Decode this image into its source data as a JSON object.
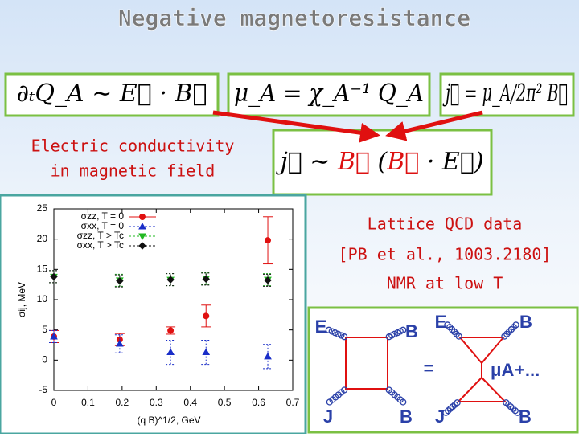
{
  "title": "Negative magnetoresistance",
  "formulas": [
    {
      "parts": [
        "∂ₜQ_A ∼ E⃗ · B⃗"
      ],
      "colors": [
        "#000000"
      ]
    },
    {
      "parts": [
        "μ_A = χ_A⁻¹ Q_A"
      ],
      "colors": [
        "#000000"
      ]
    },
    {
      "parts": [
        "j⃗ = μ_A/2π² B⃗"
      ],
      "colors": [
        "#000000"
      ]
    },
    {
      "parts": [
        "j⃗ ∼ ",
        "B⃗",
        " (",
        "B⃗",
        " · E⃗)"
      ],
      "colors": [
        "#000000",
        "#dd1111",
        "#000000",
        "#dd1111",
        "#000000"
      ]
    }
  ],
  "left_label": [
    "Electric conductivity",
    "in magnetic field"
  ],
  "right_text": [
    "Lattice QCD data",
    "[PB et al., 1003.2180]",
    "NMR at low T"
  ],
  "chart_data": {
    "type": "scatter",
    "x_label": "(q B)^1/2, GeV",
    "y_label": "σij, MeV",
    "xlim": [
      0,
      0.7
    ],
    "xticks": [
      0,
      0.1,
      0.2,
      0.3,
      0.4,
      0.5,
      0.6,
      0.7
    ],
    "ylim": [
      -5,
      25
    ],
    "yticks": [
      -5,
      0,
      5,
      10,
      15,
      20,
      25
    ],
    "series": [
      {
        "name": "σzz, T = 0",
        "color": "#e01010",
        "marker": "circle",
        "x": [
          0,
          0.193,
          0.342,
          0.446,
          0.627
        ],
        "values": [
          3.9,
          3.4,
          4.9,
          7.3,
          19.8
        ],
        "errors": [
          1,
          1,
          0.6,
          1.8,
          3.9
        ]
      },
      {
        "name": "σxx, T = 0",
        "color": "#1a2ec8",
        "marker": "triangle",
        "x": [
          0,
          0.193,
          0.342,
          0.446,
          0.627
        ],
        "values": [
          3.9,
          2.7,
          1.3,
          1.3,
          0.6
        ],
        "errors": [
          1,
          1.5,
          2,
          2,
          2
        ]
      },
      {
        "name": "σzz, T > Tc",
        "color": "#22b822",
        "marker": "triangle-down",
        "x": [
          0,
          0.193,
          0.342,
          0.446,
          0.627
        ],
        "values": [
          13.8,
          13.2,
          13.3,
          13.5,
          13.3
        ],
        "errors": [
          1,
          1,
          1,
          1,
          1
        ]
      },
      {
        "name": "σxx, T > Tc",
        "color": "#111111",
        "marker": "diamond",
        "x": [
          0,
          0.193,
          0.342,
          0.446,
          0.627
        ],
        "values": [
          13.8,
          13.1,
          13.3,
          13.4,
          13.2
        ],
        "errors": [
          1,
          1,
          1,
          1,
          1
        ]
      }
    ]
  },
  "diagram": {
    "left_labels": [
      "E",
      "B",
      "J",
      "B"
    ],
    "right_labels": [
      "E",
      "B",
      "J",
      "B"
    ],
    "vertex": "μA",
    "equals": "=",
    "plus": "+..."
  }
}
